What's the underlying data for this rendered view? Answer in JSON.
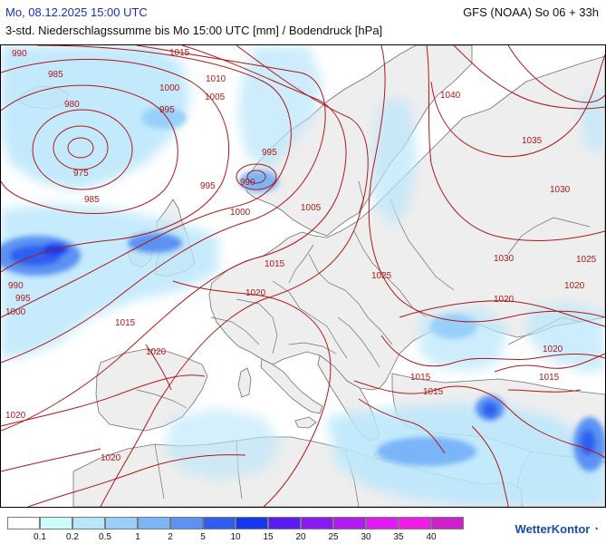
{
  "header": {
    "title_left": "Mo, 08.12.2025 15:00 UTC",
    "title_right": "GFS (NOAA) So 06 + 33h",
    "subtitle": "3-std. Niederschlagssumme bis Mo 15:00 UTC [mm] / Bodendruck [hPa]"
  },
  "legend": {
    "colors": [
      "#ffffff",
      "#cdfcfc",
      "#b8e6fb",
      "#97d0fb",
      "#7ab5f8",
      "#5b93f3",
      "#2f5ef0",
      "#1438f0",
      "#5b1af2",
      "#8a1af2",
      "#b21af2",
      "#df1af2",
      "#f21ae8",
      "#d01fcd"
    ],
    "labels": [
      "0.1",
      "0.2",
      "0.5",
      "1",
      "2",
      "5",
      "10",
      "15",
      "20",
      "25",
      "30",
      "35",
      "40"
    ]
  },
  "isobar_labels": [
    "990",
    "985",
    "980",
    "975",
    "985",
    "990",
    "995",
    "1000",
    "1015",
    "1000",
    "995",
    "1010",
    "1005",
    "995",
    "990",
    "995",
    "1000",
    "1005",
    "1015",
    "1020",
    "1015",
    "1020",
    "1020",
    "1020",
    "1025",
    "1040",
    "1035",
    "1030",
    "1030",
    "1025",
    "1020",
    "1020",
    "1020",
    "1015",
    "1015",
    "1015"
  ],
  "colors": {
    "isobar": "#b01818",
    "land": "#eeeeee",
    "sea": "#ffffff",
    "border": "#707070",
    "title_blue": "#1b2fb3"
  },
  "brand": {
    "name": "WetterKontor",
    "icon": "wetterkontor-logo-icon"
  }
}
